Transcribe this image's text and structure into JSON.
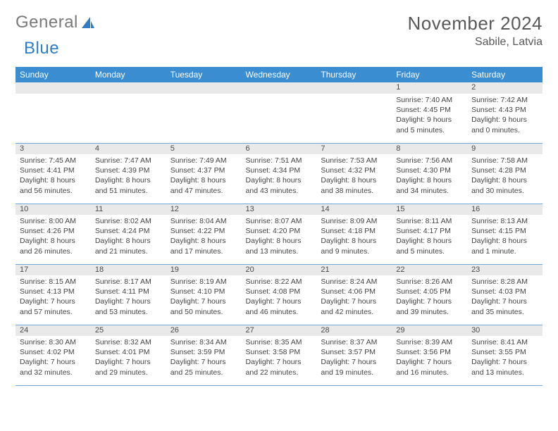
{
  "logo": {
    "text_1": "General",
    "text_2": "Blue",
    "accent_color": "#2f7dc4"
  },
  "title": "November 2024",
  "location": "Sabile, Latvia",
  "header_bg": "#3a8dd0",
  "header_fg": "#ffffff",
  "daynum_bg": "#e9e9e9",
  "row_border": "#6fa8d8",
  "columns": [
    "Sunday",
    "Monday",
    "Tuesday",
    "Wednesday",
    "Thursday",
    "Friday",
    "Saturday"
  ],
  "weeks": [
    [
      null,
      null,
      null,
      null,
      null,
      {
        "n": "1",
        "sr": "7:40 AM",
        "ss": "4:45 PM",
        "dl": "9 hours and 5 minutes."
      },
      {
        "n": "2",
        "sr": "7:42 AM",
        "ss": "4:43 PM",
        "dl": "9 hours and 0 minutes."
      }
    ],
    [
      {
        "n": "3",
        "sr": "7:45 AM",
        "ss": "4:41 PM",
        "dl": "8 hours and 56 minutes."
      },
      {
        "n": "4",
        "sr": "7:47 AM",
        "ss": "4:39 PM",
        "dl": "8 hours and 51 minutes."
      },
      {
        "n": "5",
        "sr": "7:49 AM",
        "ss": "4:37 PM",
        "dl": "8 hours and 47 minutes."
      },
      {
        "n": "6",
        "sr": "7:51 AM",
        "ss": "4:34 PM",
        "dl": "8 hours and 43 minutes."
      },
      {
        "n": "7",
        "sr": "7:53 AM",
        "ss": "4:32 PM",
        "dl": "8 hours and 38 minutes."
      },
      {
        "n": "8",
        "sr": "7:56 AM",
        "ss": "4:30 PM",
        "dl": "8 hours and 34 minutes."
      },
      {
        "n": "9",
        "sr": "7:58 AM",
        "ss": "4:28 PM",
        "dl": "8 hours and 30 minutes."
      }
    ],
    [
      {
        "n": "10",
        "sr": "8:00 AM",
        "ss": "4:26 PM",
        "dl": "8 hours and 26 minutes."
      },
      {
        "n": "11",
        "sr": "8:02 AM",
        "ss": "4:24 PM",
        "dl": "8 hours and 21 minutes."
      },
      {
        "n": "12",
        "sr": "8:04 AM",
        "ss": "4:22 PM",
        "dl": "8 hours and 17 minutes."
      },
      {
        "n": "13",
        "sr": "8:07 AM",
        "ss": "4:20 PM",
        "dl": "8 hours and 13 minutes."
      },
      {
        "n": "14",
        "sr": "8:09 AM",
        "ss": "4:18 PM",
        "dl": "8 hours and 9 minutes."
      },
      {
        "n": "15",
        "sr": "8:11 AM",
        "ss": "4:17 PM",
        "dl": "8 hours and 5 minutes."
      },
      {
        "n": "16",
        "sr": "8:13 AM",
        "ss": "4:15 PM",
        "dl": "8 hours and 1 minute."
      }
    ],
    [
      {
        "n": "17",
        "sr": "8:15 AM",
        "ss": "4:13 PM",
        "dl": "7 hours and 57 minutes."
      },
      {
        "n": "18",
        "sr": "8:17 AM",
        "ss": "4:11 PM",
        "dl": "7 hours and 53 minutes."
      },
      {
        "n": "19",
        "sr": "8:19 AM",
        "ss": "4:10 PM",
        "dl": "7 hours and 50 minutes."
      },
      {
        "n": "20",
        "sr": "8:22 AM",
        "ss": "4:08 PM",
        "dl": "7 hours and 46 minutes."
      },
      {
        "n": "21",
        "sr": "8:24 AM",
        "ss": "4:06 PM",
        "dl": "7 hours and 42 minutes."
      },
      {
        "n": "22",
        "sr": "8:26 AM",
        "ss": "4:05 PM",
        "dl": "7 hours and 39 minutes."
      },
      {
        "n": "23",
        "sr": "8:28 AM",
        "ss": "4:03 PM",
        "dl": "7 hours and 35 minutes."
      }
    ],
    [
      {
        "n": "24",
        "sr": "8:30 AM",
        "ss": "4:02 PM",
        "dl": "7 hours and 32 minutes."
      },
      {
        "n": "25",
        "sr": "8:32 AM",
        "ss": "4:01 PM",
        "dl": "7 hours and 29 minutes."
      },
      {
        "n": "26",
        "sr": "8:34 AM",
        "ss": "3:59 PM",
        "dl": "7 hours and 25 minutes."
      },
      {
        "n": "27",
        "sr": "8:35 AM",
        "ss": "3:58 PM",
        "dl": "7 hours and 22 minutes."
      },
      {
        "n": "28",
        "sr": "8:37 AM",
        "ss": "3:57 PM",
        "dl": "7 hours and 19 minutes."
      },
      {
        "n": "29",
        "sr": "8:39 AM",
        "ss": "3:56 PM",
        "dl": "7 hours and 16 minutes."
      },
      {
        "n": "30",
        "sr": "8:41 AM",
        "ss": "3:55 PM",
        "dl": "7 hours and 13 minutes."
      }
    ]
  ],
  "labels": {
    "sunrise": "Sunrise: ",
    "sunset": "Sunset: ",
    "daylight": "Daylight: "
  }
}
